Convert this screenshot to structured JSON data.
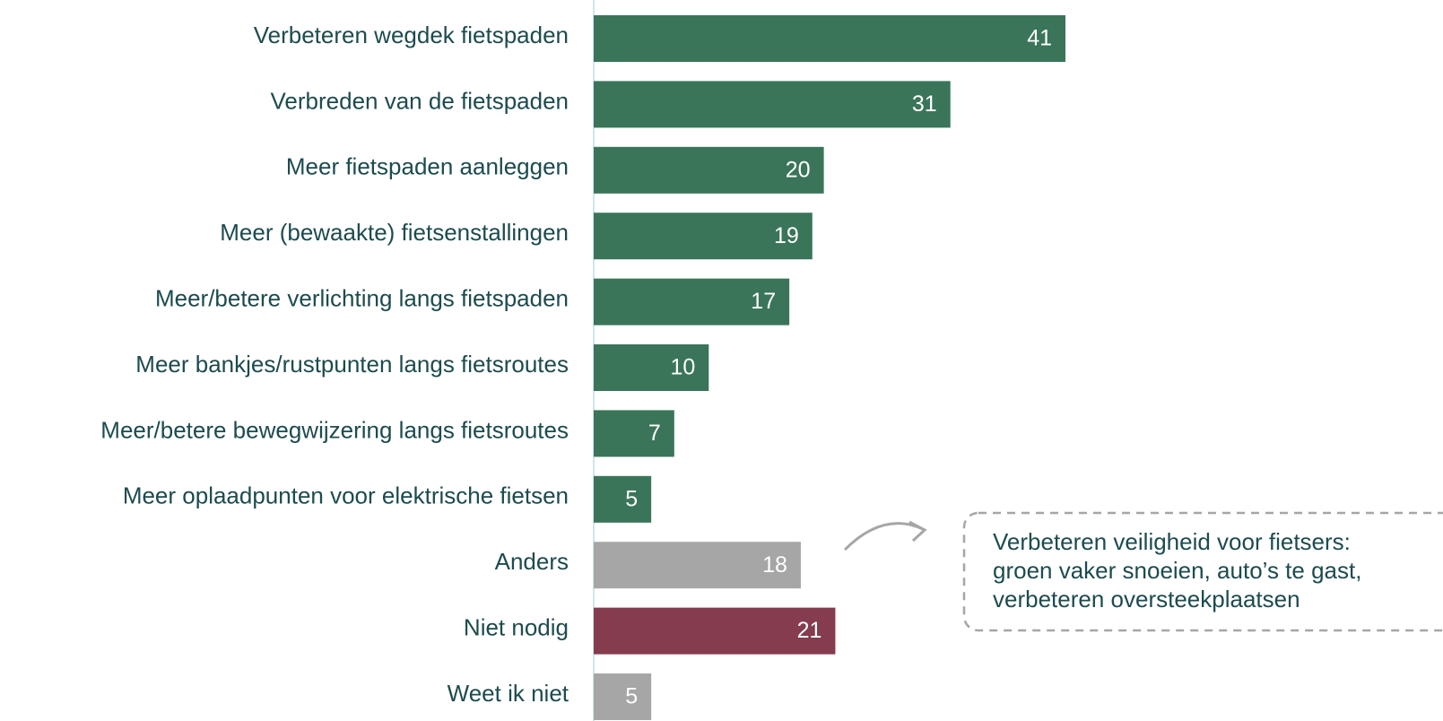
{
  "chart_data": {
    "type": "bar",
    "orientation": "horizontal",
    "categories": [
      "Verbeteren wegdek fietspaden",
      "Verbreden van de fietspaden",
      "Meer fietspaden aanleggen",
      "Meer (bewaakte) fietsenstallingen",
      "Meer/betere verlichting langs fietspaden",
      "Meer bankjes/rustpunten langs fietsroutes",
      "Meer/betere bewegwijzering langs fietsroutes",
      "Meer oplaadpunten voor elektrische fietsen",
      "Anders",
      "Niet nodig",
      "Weet ik niet"
    ],
    "values": [
      41,
      31,
      20,
      19,
      17,
      10,
      7,
      5,
      18,
      21,
      5
    ],
    "colors": [
      "#3a7559",
      "#3a7559",
      "#3a7559",
      "#3a7559",
      "#3a7559",
      "#3a7559",
      "#3a7559",
      "#3a7559",
      "#a6a6a6",
      "#843c4e",
      "#a6a6a6"
    ],
    "annotation": [
      "Verbeteren veiligheid voor fietsers:",
      "groen vaker snoeien, auto’s te gast,",
      "verbeteren oversteekplaatsen"
    ]
  }
}
